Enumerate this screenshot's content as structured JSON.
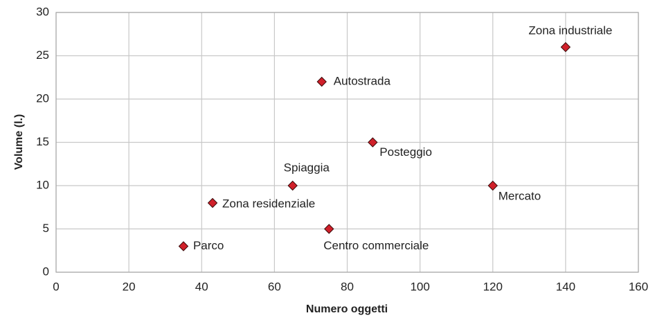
{
  "chart_data": {
    "type": "scatter",
    "x": [
      35,
      43,
      65,
      75,
      73,
      87,
      120,
      140
    ],
    "values": [
      3,
      8,
      10,
      5,
      22,
      15,
      10,
      26
    ],
    "labels": [
      "Parco",
      "Zona residenziale",
      "Spiaggia",
      "Centro commerciale",
      "Autostrada",
      "Posteggio",
      "Mercato",
      "Zona industriale"
    ],
    "color": "#d0202a",
    "xlabel": "Numero oggetti",
    "ylabel": "Volume (l.)",
    "xlim": [
      0,
      160
    ],
    "xticks": [
      0,
      20,
      40,
      60,
      80,
      100,
      120,
      140,
      160
    ],
    "ylim": [
      0,
      30
    ],
    "yticks": [
      0,
      5,
      10,
      15,
      20,
      25,
      30
    ],
    "grid": true
  }
}
